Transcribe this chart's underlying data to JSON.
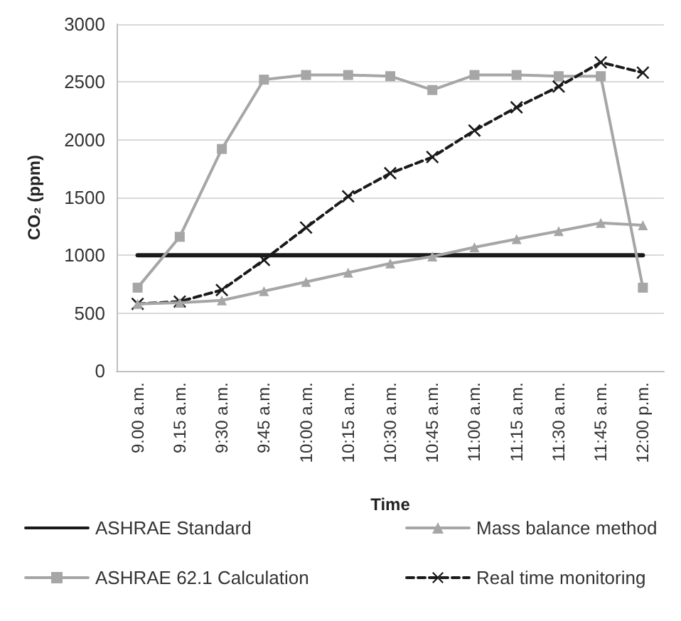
{
  "chart_data": {
    "type": "line",
    "xlabel": "Time",
    "ylabel": "CO₂ (ppm)",
    "categories": [
      "9.00 a.m.",
      "9.15 a.m.",
      "9:30 a.m.",
      "9:45 a.m.",
      "10:00 a.m.",
      "10:15 a.m.",
      "10:30 a.m.",
      "10:45 a.m.",
      "11:00 a.m.",
      "11:15 a.m.",
      "11:30 a.m.",
      "11:45 a.m.",
      "12:00 p.m."
    ],
    "series": [
      {
        "name": "ASHRAE Standard",
        "color": "#1a1a1a",
        "marker": "none",
        "line_style": "solid",
        "values": [
          1000,
          1000,
          1000,
          1000,
          1000,
          1000,
          1000,
          1000,
          1000,
          1000,
          1000,
          1000,
          1000
        ]
      },
      {
        "name": "Mass balance method",
        "color": "#a6a6a6",
        "marker": "triangle",
        "line_style": "solid",
        "values": [
          580,
          590,
          610,
          690,
          770,
          850,
          930,
          990,
          1070,
          1140,
          1210,
          1280,
          1260
        ]
      },
      {
        "name": "ASHRAE 62.1 Calculation",
        "color": "#a6a6a6",
        "marker": "square",
        "line_style": "solid",
        "values": [
          720,
          1160,
          1920,
          2520,
          2560,
          2560,
          2550,
          2430,
          2560,
          2560,
          2550,
          2550,
          720
        ]
      },
      {
        "name": "Real time monitoring",
        "color": "#1a1a1a",
        "marker": "cross",
        "line_style": "dashed",
        "values": [
          580,
          600,
          700,
          960,
          1240,
          1510,
          1710,
          1850,
          2080,
          2280,
          2460,
          2670,
          2580
        ]
      }
    ],
    "ylim": [
      0,
      3000
    ],
    "yticks": [
      0,
      500,
      1000,
      1500,
      2000,
      2500,
      3000
    ],
    "grid": "y",
    "legend": "bottom"
  }
}
